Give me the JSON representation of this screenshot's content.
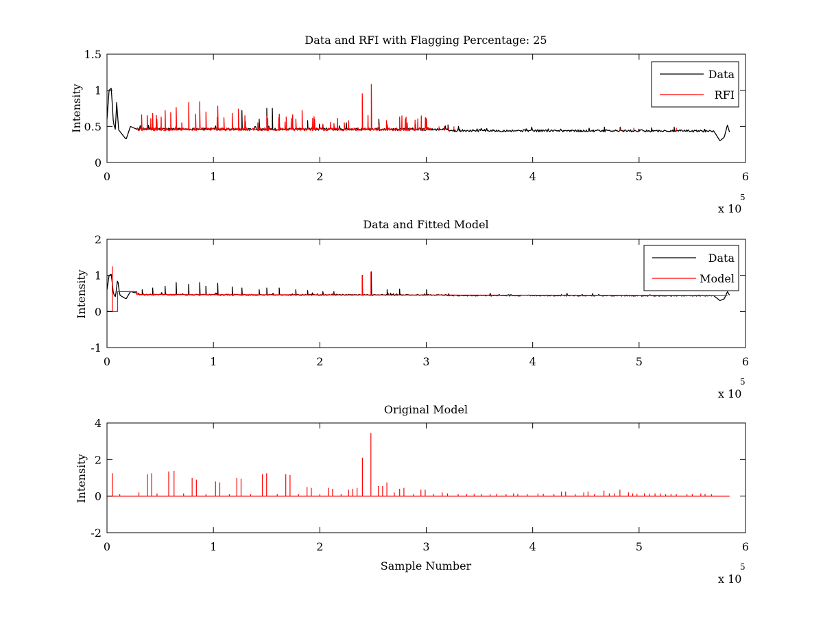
{
  "chart_data": [
    {
      "type": "line",
      "title": "Data and RFI with Flagging Percentage: 25",
      "xlabel": "",
      "ylabel": "Intensity",
      "xlim": [
        0,
        6
      ],
      "ylim": [
        0,
        1.5
      ],
      "x_ticks": [
        "0",
        "1",
        "2",
        "3",
        "4",
        "5",
        "6"
      ],
      "y_ticks": [
        "0",
        "0.5",
        "1",
        "1.5"
      ],
      "x_multiplier": {
        "base": "x 10",
        "exponent": "5"
      },
      "legend": {
        "position": "top-right",
        "entries": [
          "Data",
          "RFI"
        ]
      },
      "series": [
        {
          "name": "Data",
          "color": "#000000",
          "baseline": 0.45
        },
        {
          "name": "RFI",
          "color": "#ff0000",
          "x_range": [
            0.28,
            3.05
          ]
        }
      ],
      "features": {
        "start_bump": [
          [
            0.0,
            0.6
          ],
          [
            0.02,
            1.0
          ],
          [
            0.04,
            1.03
          ],
          [
            0.06,
            0.55
          ],
          [
            0.08,
            0.45
          ],
          [
            0.09,
            0.85
          ],
          [
            0.11,
            0.45
          ],
          [
            0.18,
            0.32
          ],
          [
            0.22,
            0.5
          ],
          [
            0.28,
            0.46
          ]
        ],
        "end_dip": [
          [
            5.7,
            0.44
          ],
          [
            5.76,
            0.3
          ],
          [
            5.8,
            0.35
          ],
          [
            5.83,
            0.52
          ],
          [
            5.85,
            0.42
          ]
        ],
        "rfi_spikes": [
          [
            0.33,
            0.66
          ],
          [
            0.38,
            0.65
          ],
          [
            0.43,
            0.68
          ],
          [
            0.47,
            0.6
          ],
          [
            0.55,
            0.72
          ],
          [
            0.6,
            0.69
          ],
          [
            0.65,
            0.76
          ],
          [
            0.7,
            0.55
          ],
          [
            0.77,
            0.83
          ],
          [
            0.83,
            0.67
          ],
          [
            0.87,
            0.84
          ],
          [
            0.93,
            0.7
          ],
          [
            1.04,
            0.78
          ],
          [
            1.1,
            0.62
          ],
          [
            1.18,
            0.68
          ],
          [
            1.24,
            0.74
          ],
          [
            1.3,
            0.57
          ],
          [
            1.42,
            0.55
          ],
          [
            1.5,
            0.64
          ],
          [
            1.62,
            0.67
          ],
          [
            1.68,
            0.63
          ],
          [
            1.77,
            0.6
          ],
          [
            1.83,
            0.72
          ],
          [
            1.95,
            0.6
          ],
          [
            2.03,
            0.53
          ],
          [
            2.13,
            0.54
          ],
          [
            2.23,
            0.55
          ],
          [
            2.4,
            0.95
          ],
          [
            2.48,
            1.08
          ],
          [
            2.55,
            0.52
          ],
          [
            2.63,
            0.58
          ],
          [
            2.75,
            0.63
          ],
          [
            2.82,
            0.55
          ],
          [
            2.9,
            0.53
          ],
          [
            3.0,
            0.6
          ]
        ],
        "data_spikes": [
          [
            1.27,
            0.72
          ],
          [
            1.5,
            0.75
          ],
          [
            1.55,
            0.75
          ],
          [
            1.43,
            0.6
          ],
          [
            1.62,
            0.65
          ],
          [
            1.88,
            0.58
          ],
          [
            2.0,
            0.53
          ],
          [
            2.25,
            0.55
          ],
          [
            2.55,
            0.6
          ],
          [
            2.63,
            0.52
          ],
          [
            3.2,
            0.52
          ],
          [
            3.3,
            0.5
          ],
          [
            4.67,
            0.49
          ],
          [
            4.82,
            0.49
          ],
          [
            5.12,
            0.48
          ],
          [
            5.33,
            0.49
          ]
        ]
      }
    },
    {
      "type": "line",
      "title": "Data and Fitted Model",
      "xlabel": "",
      "ylabel": "Intensity",
      "xlim": [
        0,
        6
      ],
      "ylim": [
        -1,
        2
      ],
      "x_ticks": [
        "0",
        "1",
        "2",
        "3",
        "4",
        "5",
        "6"
      ],
      "y_ticks": [
        "-1",
        "0",
        "1",
        "2"
      ],
      "x_multiplier": {
        "base": "x 10",
        "exponent": "5"
      },
      "legend": {
        "position": "top-right",
        "entries": [
          "Data",
          "Model"
        ]
      },
      "series": [
        {
          "name": "Data",
          "color": "#000000",
          "baseline": 0.45
        },
        {
          "name": "Model",
          "color": "#ff0000",
          "baseline": 0.45
        }
      ],
      "features": {
        "start_bump": [
          [
            0.0,
            0.6
          ],
          [
            0.02,
            1.0
          ],
          [
            0.04,
            1.03
          ],
          [
            0.06,
            0.5
          ],
          [
            0.08,
            0.4
          ],
          [
            0.1,
            0.9
          ],
          [
            0.12,
            0.45
          ],
          [
            0.18,
            0.35
          ],
          [
            0.22,
            0.55
          ],
          [
            0.3,
            0.5
          ]
        ],
        "end_dip": [
          [
            5.7,
            0.44
          ],
          [
            5.76,
            0.3
          ],
          [
            5.8,
            0.35
          ],
          [
            5.83,
            0.55
          ],
          [
            5.85,
            0.45
          ]
        ],
        "model_start": [
          [
            0.0,
            0.0
          ],
          [
            0.1,
            0.0
          ],
          [
            0.1,
            0.55
          ],
          [
            0.28,
            0.55
          ]
        ],
        "model_spike": [
          0.05,
          1.25
        ],
        "data_spikes": [
          [
            0.33,
            0.6
          ],
          [
            0.43,
            0.65
          ],
          [
            0.55,
            0.7
          ],
          [
            0.65,
            0.8
          ],
          [
            0.77,
            0.75
          ],
          [
            0.87,
            0.8
          ],
          [
            0.93,
            0.7
          ],
          [
            1.04,
            0.78
          ],
          [
            1.18,
            0.68
          ],
          [
            1.27,
            0.65
          ],
          [
            1.43,
            0.6
          ],
          [
            1.5,
            0.65
          ],
          [
            1.62,
            0.65
          ],
          [
            1.77,
            0.6
          ],
          [
            1.88,
            0.58
          ],
          [
            2.03,
            0.55
          ],
          [
            2.13,
            0.55
          ],
          [
            2.4,
            1.0
          ],
          [
            2.48,
            1.1
          ],
          [
            2.63,
            0.6
          ],
          [
            2.75,
            0.62
          ],
          [
            3.0,
            0.6
          ]
        ]
      }
    },
    {
      "type": "line",
      "title": "Original Model",
      "xlabel": "Sample Number",
      "ylabel": "Intensity",
      "xlim": [
        0,
        6
      ],
      "ylim": [
        -2,
        4
      ],
      "x_ticks": [
        "0",
        "1",
        "2",
        "3",
        "4",
        "5",
        "6"
      ],
      "y_ticks": [
        "-2",
        "0",
        "2",
        "4"
      ],
      "x_multiplier": {
        "base": "x 10",
        "exponent": "5"
      },
      "series": [
        {
          "name": "",
          "color": "#ff0000",
          "baseline": 0.0,
          "x_range": [
            0.0,
            5.85
          ],
          "spikes": [
            [
              0.05,
              1.25
            ],
            [
              0.12,
              0.1
            ],
            [
              0.3,
              0.2
            ],
            [
              0.38,
              1.2
            ],
            [
              0.42,
              1.25
            ],
            [
              0.47,
              0.15
            ],
            [
              0.58,
              1.35
            ],
            [
              0.63,
              1.38
            ],
            [
              0.72,
              0.15
            ],
            [
              0.8,
              1.0
            ],
            [
              0.84,
              0.9
            ],
            [
              0.93,
              0.1
            ],
            [
              1.02,
              0.8
            ],
            [
              1.06,
              0.75
            ],
            [
              1.15,
              0.1
            ],
            [
              1.22,
              1.0
            ],
            [
              1.26,
              0.95
            ],
            [
              1.35,
              0.1
            ],
            [
              1.46,
              1.2
            ],
            [
              1.5,
              1.25
            ],
            [
              1.6,
              0.1
            ],
            [
              1.68,
              1.2
            ],
            [
              1.72,
              1.15
            ],
            [
              1.8,
              0.1
            ],
            [
              1.88,
              0.5
            ],
            [
              1.92,
              0.45
            ],
            [
              2.0,
              0.1
            ],
            [
              2.08,
              0.45
            ],
            [
              2.12,
              0.4
            ],
            [
              2.2,
              0.1
            ],
            [
              2.27,
              0.35
            ],
            [
              2.31,
              0.4
            ],
            [
              2.35,
              0.45
            ],
            [
              2.4,
              2.1
            ],
            [
              2.48,
              3.45
            ],
            [
              2.55,
              0.55
            ],
            [
              2.59,
              0.55
            ],
            [
              2.63,
              0.75
            ],
            [
              2.7,
              0.2
            ],
            [
              2.75,
              0.4
            ],
            [
              2.79,
              0.45
            ],
            [
              2.88,
              0.1
            ],
            [
              2.95,
              0.35
            ],
            [
              2.99,
              0.35
            ],
            [
              3.07,
              0.1
            ],
            [
              3.15,
              0.2
            ],
            [
              3.2,
              0.15
            ],
            [
              3.3,
              0.1
            ],
            [
              3.38,
              0.1
            ],
            [
              3.45,
              0.12
            ],
            [
              3.52,
              0.1
            ],
            [
              3.6,
              0.1
            ],
            [
              3.66,
              0.12
            ],
            [
              3.75,
              0.1
            ],
            [
              3.82,
              0.15
            ],
            [
              3.86,
              0.12
            ],
            [
              3.95,
              0.1
            ],
            [
              4.05,
              0.15
            ],
            [
              4.1,
              0.12
            ],
            [
              4.2,
              0.1
            ],
            [
              4.27,
              0.25
            ],
            [
              4.31,
              0.25
            ],
            [
              4.4,
              0.1
            ],
            [
              4.48,
              0.2
            ],
            [
              4.52,
              0.25
            ],
            [
              4.58,
              0.1
            ],
            [
              4.67,
              0.3
            ],
            [
              4.72,
              0.15
            ],
            [
              4.77,
              0.15
            ],
            [
              4.82,
              0.35
            ],
            [
              4.9,
              0.2
            ],
            [
              4.94,
              0.15
            ],
            [
              4.98,
              0.12
            ],
            [
              5.05,
              0.15
            ],
            [
              5.1,
              0.12
            ],
            [
              5.15,
              0.15
            ],
            [
              5.2,
              0.15
            ],
            [
              5.25,
              0.1
            ],
            [
              5.3,
              0.12
            ],
            [
              5.35,
              0.1
            ],
            [
              5.45,
              0.1
            ],
            [
              5.5,
              0.1
            ],
            [
              5.58,
              0.15
            ],
            [
              5.62,
              0.12
            ],
            [
              5.68,
              0.1
            ]
          ]
        }
      ]
    }
  ]
}
